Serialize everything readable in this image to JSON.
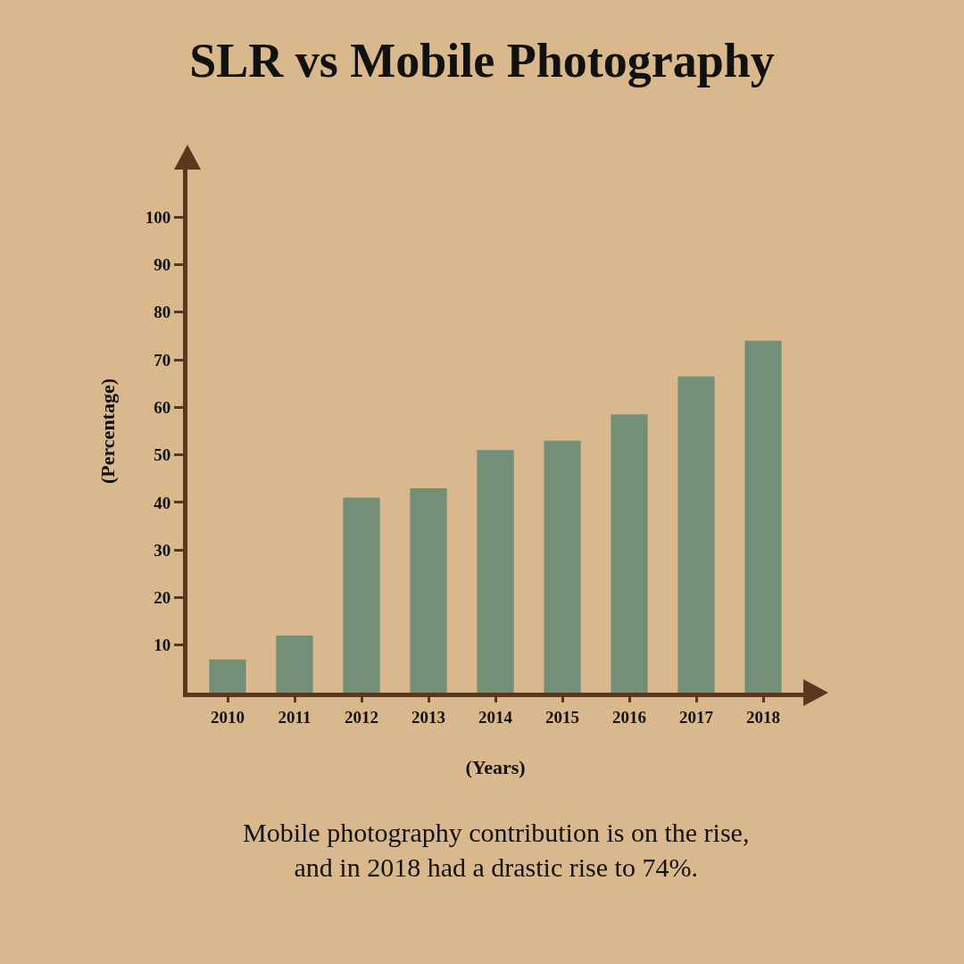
{
  "chart_data": {
    "type": "bar",
    "title": "SLR vs Mobile Photography",
    "xlabel": "(Years)",
    "ylabel": "(Percentage)",
    "categories": [
      "2010",
      "2011",
      "2012",
      "2013",
      "2014",
      "2015",
      "2016",
      "2017",
      "2018"
    ],
    "values": [
      7,
      12,
      41,
      43,
      51,
      53,
      58.5,
      66.5,
      74
    ],
    "color": "#738f78",
    "ylim": [
      0,
      110
    ],
    "yticks": [
      10,
      20,
      30,
      40,
      50,
      60,
      70,
      80,
      90,
      100
    ],
    "grid": false,
    "annotations": [
      "Mobile photography contribution is on the rise,\nand in 2018 had a drastic rise to 74%."
    ]
  }
}
